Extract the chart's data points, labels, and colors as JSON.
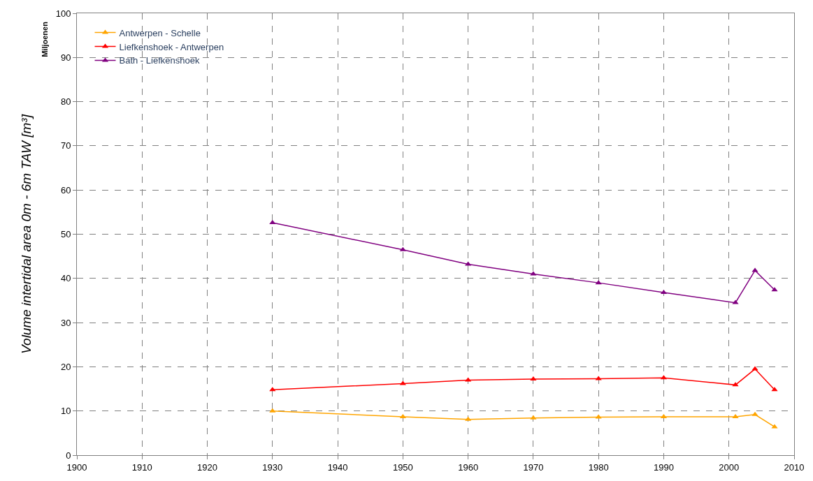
{
  "chart_data": {
    "type": "line",
    "ylabel": "Volume intertidal area 0m - 6m TAW [m³]",
    "annotations": [
      "Miljoenen"
    ],
    "x": [
      1930,
      1950,
      1960,
      1970,
      1980,
      1990,
      2001,
      2004,
      2007
    ],
    "series": [
      {
        "name": "Antwerpen - Schelle",
        "color": "#ffa500",
        "values": [
          10.0,
          8.7,
          8.1,
          8.4,
          8.6,
          8.7,
          8.7,
          9.2,
          6.4
        ]
      },
      {
        "name": "Liefkenshoek - Antwerpen",
        "color": "#ff0000",
        "values": [
          14.8,
          16.2,
          17.0,
          17.2,
          17.3,
          17.5,
          15.9,
          19.5,
          14.8
        ]
      },
      {
        "name": "Bath - Liefkenshoek",
        "color": "#800080",
        "values": [
          52.6,
          46.5,
          43.2,
          41.0,
          39.0,
          36.8,
          34.5,
          41.8,
          37.4
        ]
      }
    ],
    "xlim": [
      1900,
      2010
    ],
    "xticks": [
      1900,
      1910,
      1920,
      1930,
      1940,
      1950,
      1960,
      1970,
      1980,
      1990,
      2000,
      2010
    ],
    "ylim": [
      0,
      100
    ],
    "yticks": [
      0,
      10,
      20,
      30,
      40,
      50,
      60,
      70,
      80,
      90,
      100
    ],
    "grid": true,
    "legend": "top left",
    "marker": "triangle",
    "line_style": "solid"
  }
}
